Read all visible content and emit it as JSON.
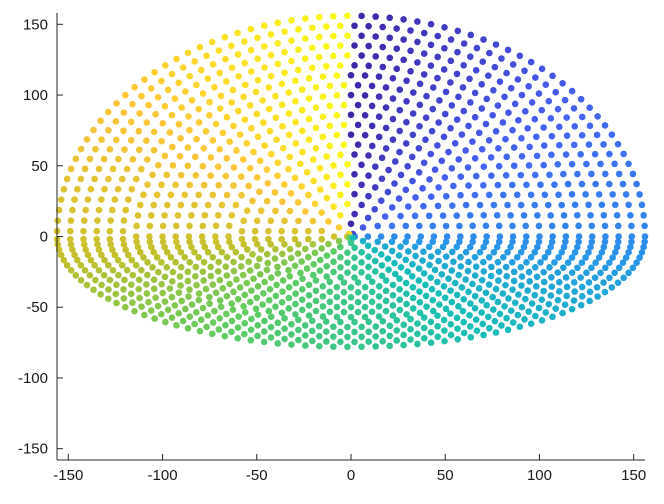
{
  "chart_data": {
    "type": "scatter",
    "title": "",
    "xlabel": "",
    "ylabel": "",
    "xlim": [
      -156,
      156
    ],
    "ylim": [
      -158,
      158
    ],
    "xticks": [
      -150,
      -100,
      -50,
      0,
      50,
      100,
      150
    ],
    "yticks": [
      -150,
      -100,
      -50,
      0,
      50,
      100,
      150
    ],
    "xtick_labels": [
      "-150",
      "-100",
      "-50",
      "0",
      "50",
      "100",
      "150"
    ],
    "ytick_labels": [
      "-150",
      "-100",
      "-50",
      "0",
      "50",
      "100",
      "150"
    ],
    "grid": false,
    "legend": "none",
    "colormap": "parula",
    "colormap_stops": [
      "#3e26a8",
      "#4760f4",
      "#2897ea",
      "#17bfb4",
      "#5ecc62",
      "#c2c02c",
      "#fec63b",
      "#f9fb15"
    ],
    "series": [
      {
        "marker": "filled-circle",
        "color_mapped_to": "polar-angle",
        "points_generated_from": "spiral",
        "spiral": {
          "radius_min": 2,
          "radius_max": 156,
          "radius_step": 7,
          "arc_spacing": 7.5,
          "y_scale_bottom": 0.5,
          "center": [
            0,
            0
          ]
        }
      }
    ]
  }
}
